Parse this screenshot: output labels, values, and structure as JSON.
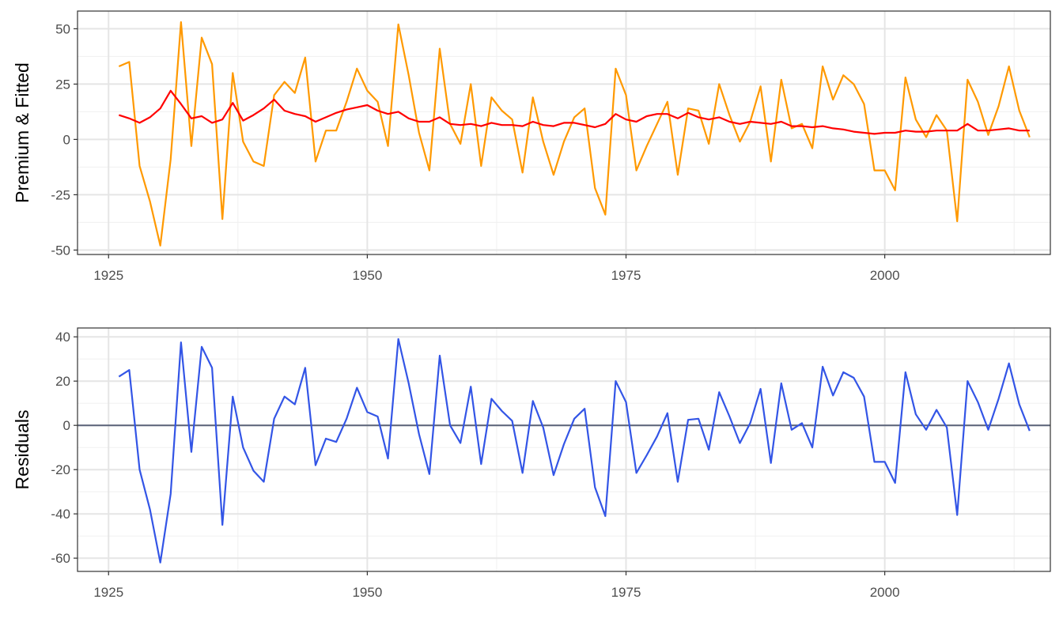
{
  "chart_data": [
    {
      "type": "line",
      "ylabel": "Premium & Fitted",
      "xlim": [
        1922,
        2016
      ],
      "ylim": [
        -52,
        58
      ],
      "x_ticks": [
        1925,
        1950,
        1975,
        2000
      ],
      "x_tick_labels": [
        "1925",
        "1950",
        "1975",
        "2000"
      ],
      "y_ticks": [
        -50,
        -25,
        0,
        25,
        50
      ],
      "y_tick_labels": [
        "-50",
        "-25",
        "0",
        "25",
        "50"
      ],
      "grid": true,
      "x": [
        1926,
        1927,
        1928,
        1929,
        1930,
        1931,
        1932,
        1933,
        1934,
        1935,
        1936,
        1937,
        1938,
        1939,
        1940,
        1941,
        1942,
        1943,
        1944,
        1945,
        1946,
        1947,
        1948,
        1949,
        1950,
        1951,
        1952,
        1953,
        1954,
        1955,
        1956,
        1957,
        1958,
        1959,
        1960,
        1961,
        1962,
        1963,
        1964,
        1965,
        1966,
        1967,
        1968,
        1969,
        1970,
        1971,
        1972,
        1973,
        1974,
        1975,
        1976,
        1977,
        1978,
        1979,
        1980,
        1981,
        1982,
        1983,
        1984,
        1985,
        1986,
        1987,
        1988,
        1989,
        1990,
        1991,
        1992,
        1993,
        1994,
        1995,
        1996,
        1997,
        1998,
        1999,
        2000,
        2001,
        2002,
        2003,
        2004,
        2005,
        2006,
        2007,
        2008,
        2009,
        2010,
        2011,
        2012,
        2013,
        2014
      ],
      "series": [
        {
          "color": "#FF9900",
          "values": [
            33,
            35,
            -12,
            -28,
            -48,
            -9,
            53,
            -3,
            46,
            34,
            -36,
            30,
            -1,
            -10,
            -12,
            20,
            26,
            21,
            37,
            -10,
            4,
            4,
            17,
            32,
            22,
            17,
            -3,
            52,
            29,
            3,
            -14,
            41,
            7,
            -2,
            25,
            -12,
            19,
            13,
            9,
            -15,
            19,
            -1,
            -16,
            -1,
            10,
            14,
            -22,
            -34,
            32,
            20,
            -14,
            -3,
            7,
            17,
            -16,
            14,
            13,
            -2,
            25,
            11,
            -1,
            8,
            24,
            -10,
            27,
            5,
            7,
            -4,
            33,
            18,
            29,
            25,
            16,
            -14,
            -14,
            -23,
            28,
            9,
            1,
            11,
            4,
            -37,
            27,
            17,
            2,
            15,
            33,
            13,
            1
          ],
          "values_note": ""
        },
        {
          "color": "#FF0000",
          "values": [
            11,
            9.5,
            7.5,
            10,
            14,
            22,
            16,
            9.5,
            10.5,
            7.5,
            9,
            16.5,
            8.5,
            11,
            14,
            18,
            13,
            11.5,
            10.5,
            8,
            10,
            12,
            13.5,
            14.5,
            15.5,
            13,
            11.5,
            12.5,
            9.5,
            8,
            8,
            10,
            7,
            6.5,
            7,
            6,
            7.5,
            6.5,
            6.5,
            6,
            8,
            6.5,
            6,
            7.5,
            7.5,
            6.5,
            5.5,
            7,
            11.5,
            9,
            8,
            10.5,
            11.5,
            11.5,
            9.5,
            12,
            10,
            9,
            10,
            8,
            7,
            8,
            7.5,
            7,
            8,
            6,
            6,
            5.5,
            6,
            5,
            4.5,
            3.5,
            3,
            2.5,
            3,
            3,
            4,
            3.5,
            3.5,
            4,
            4,
            4,
            7,
            4,
            4,
            4.5,
            5,
            4,
            4
          ]
        }
      ]
    },
    {
      "type": "line",
      "ylabel": "Residuals",
      "xlim": [
        1922,
        2016
      ],
      "ylim": [
        -66,
        44
      ],
      "x_ticks": [
        1925,
        1950,
        1975,
        2000
      ],
      "x_tick_labels": [
        "1925",
        "1950",
        "1975",
        "2000"
      ],
      "y_ticks": [
        -60,
        -40,
        -20,
        0,
        20,
        40
      ],
      "y_tick_labels": [
        "-60",
        "-40",
        "-20",
        "0",
        "20",
        "40"
      ],
      "grid": true,
      "hline": 0,
      "hline_color": "#5A6378",
      "x": [
        1926,
        1927,
        1928,
        1929,
        1930,
        1931,
        1932,
        1933,
        1934,
        1935,
        1936,
        1937,
        1938,
        1939,
        1940,
        1941,
        1942,
        1943,
        1944,
        1945,
        1946,
        1947,
        1948,
        1949,
        1950,
        1951,
        1952,
        1953,
        1954,
        1955,
        1956,
        1957,
        1958,
        1959,
        1960,
        1961,
        1962,
        1963,
        1964,
        1965,
        1966,
        1967,
        1968,
        1969,
        1970,
        1971,
        1972,
        1973,
        1974,
        1975,
        1976,
        1977,
        1978,
        1979,
        1980,
        1981,
        1982,
        1983,
        1984,
        1985,
        1986,
        1987,
        1988,
        1989,
        1990,
        1991,
        1992,
        1993,
        1994,
        1995,
        1996,
        1997,
        1998,
        1999,
        2000,
        2001,
        2002,
        2003,
        2004,
        2005,
        2006,
        2007,
        2008,
        2009,
        2010,
        2011,
        2012,
        2013,
        2014
      ],
      "series": [
        {
          "color": "#3355E6",
          "values": [
            22,
            25,
            -20,
            -38,
            -62,
            -31,
            37.5,
            -12,
            35.5,
            26,
            -45,
            13,
            -10,
            -20.5,
            -25.5,
            3,
            13,
            9.5,
            26,
            -18,
            -6,
            -7.5,
            3,
            17,
            6,
            4,
            -15,
            39,
            19,
            -4,
            -22,
            31.5,
            0,
            -8,
            17.5,
            -17.5,
            12,
            6.5,
            2,
            -21.5,
            11,
            -1,
            -22.5,
            -8.5,
            3,
            7.5,
            -28,
            -41,
            20,
            10.5,
            -21.5,
            -13.5,
            -5,
            5.5,
            -25.5,
            2.5,
            3,
            -11,
            15,
            4,
            -8,
            1,
            16.5,
            -17,
            19,
            -2,
            1,
            -10,
            26.5,
            13.5,
            24,
            21.5,
            13,
            -16.5,
            -16.5,
            -26,
            24,
            5,
            -2,
            7,
            -1,
            -40.5,
            20,
            10.5,
            -2,
            12,
            28,
            9.5,
            -2.5
          ]
        }
      ]
    }
  ]
}
